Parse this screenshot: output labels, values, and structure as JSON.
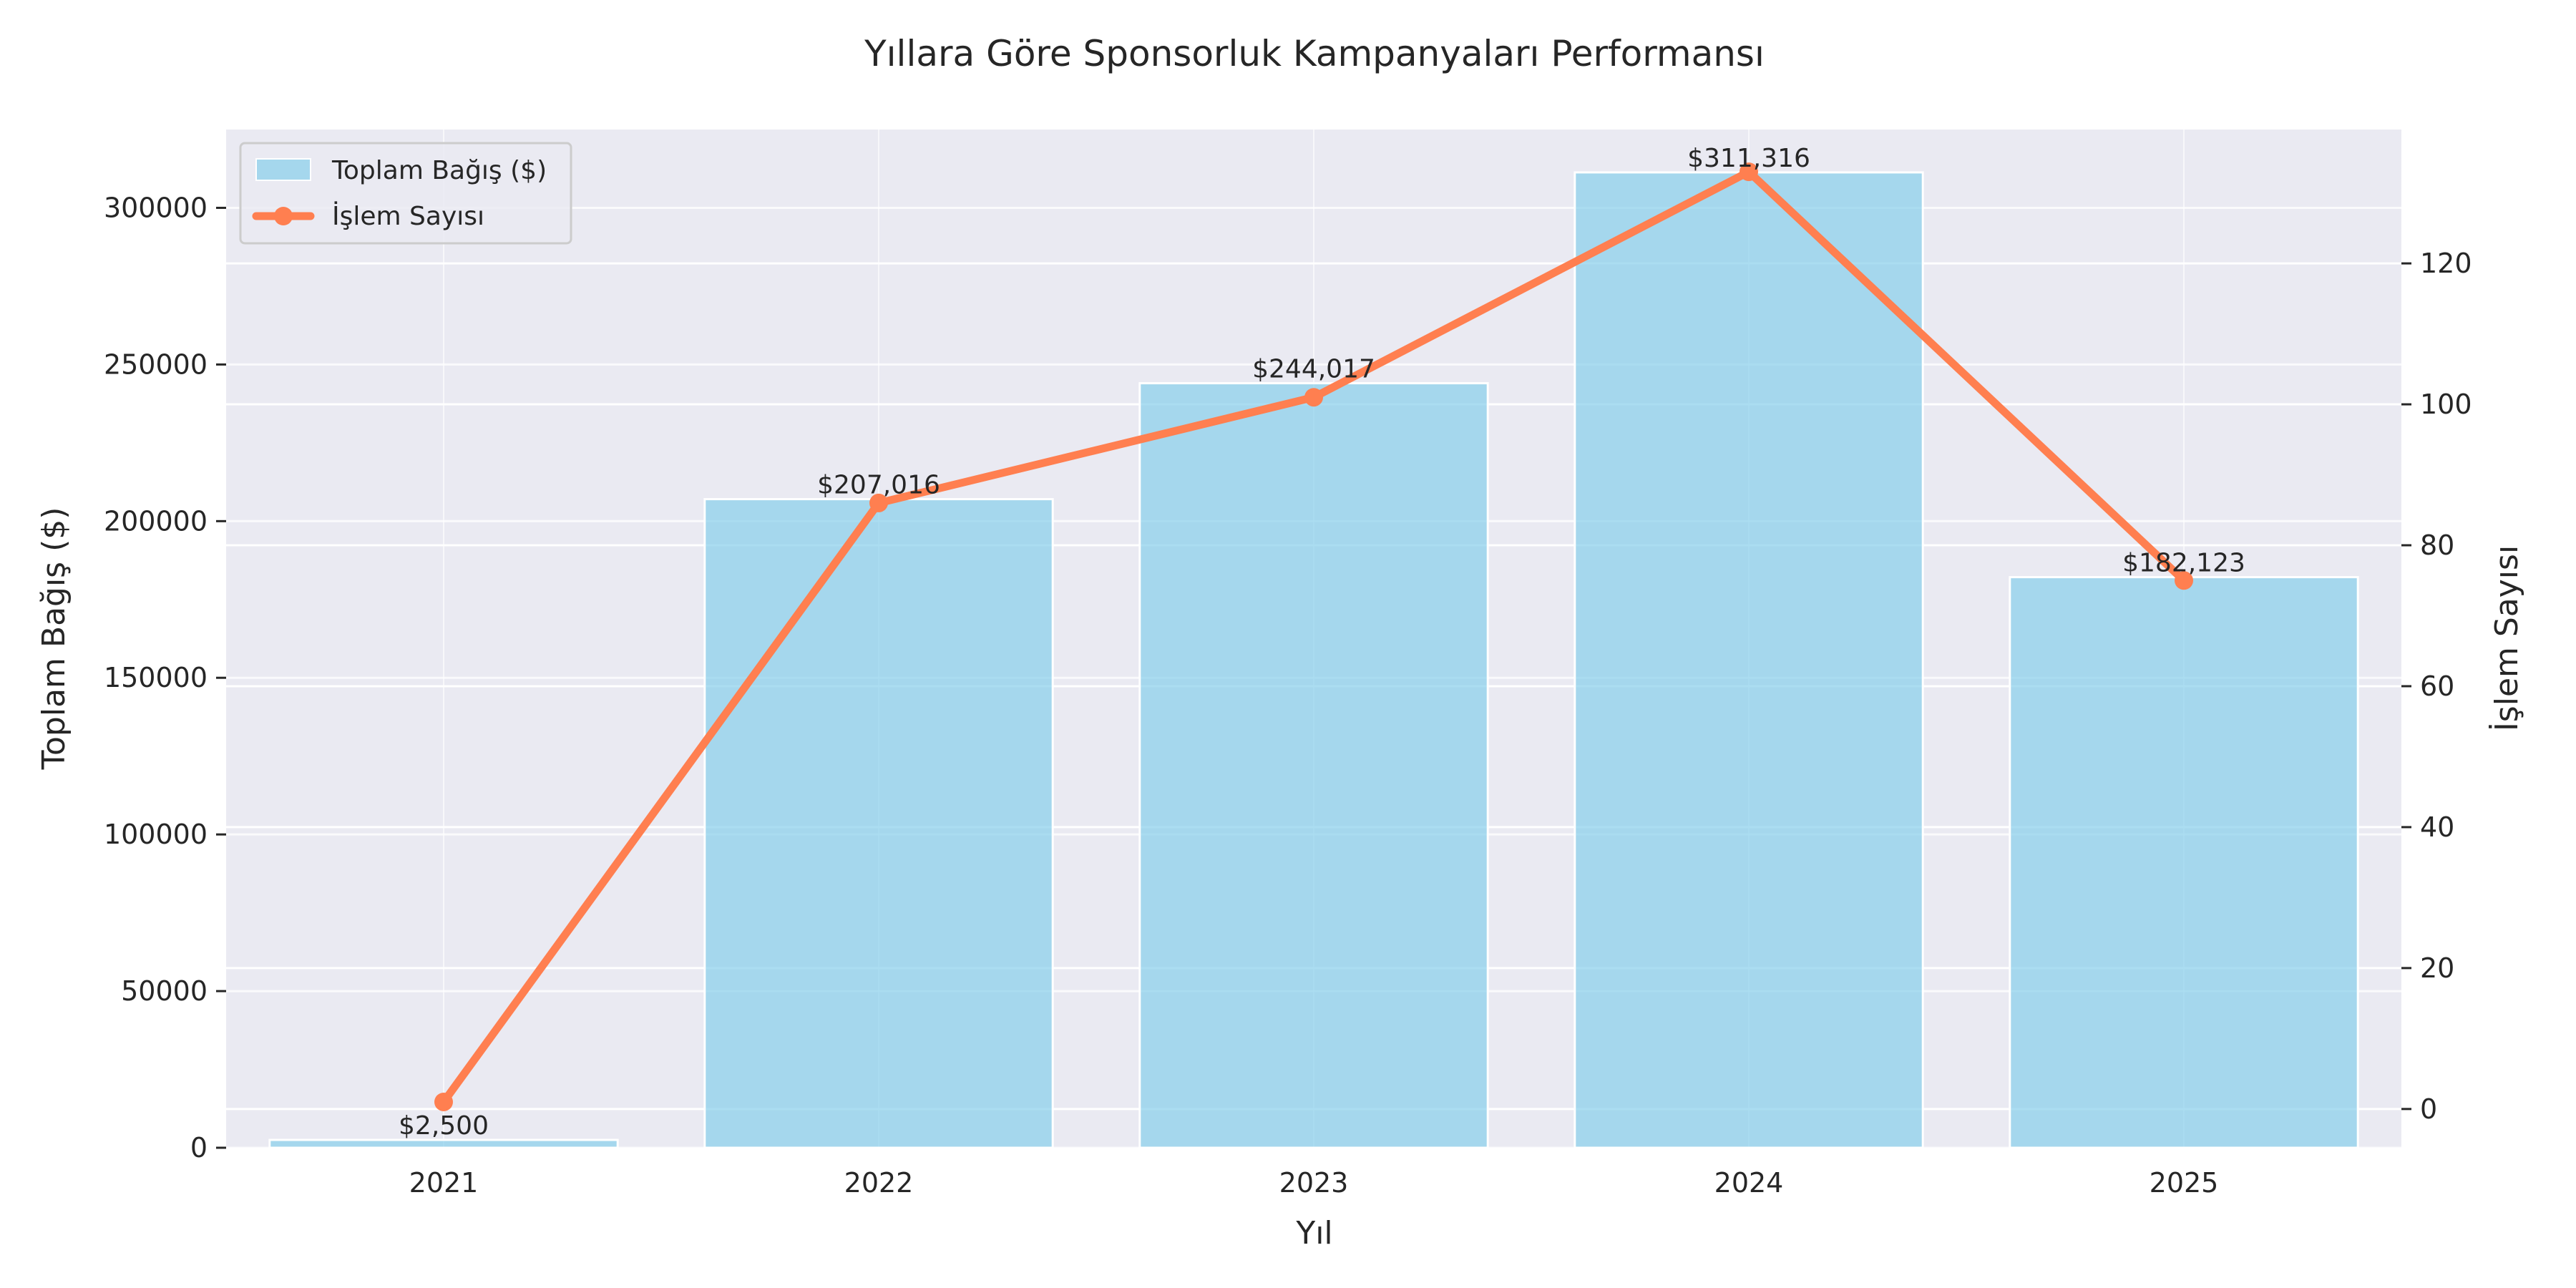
{
  "chart_data": {
    "type": "bar+line",
    "title": "Yıllara Göre Sponsorluk Kampanyaları Performansı",
    "xlabel": "Yıl",
    "ylabel_left": "Toplam Bağış ($)",
    "ylabel_right": "İşlem Sayısı",
    "categories": [
      "2021",
      "2022",
      "2023",
      "2024",
      "2025"
    ],
    "series": [
      {
        "name": "Toplam Bağış ($)",
        "type": "bar",
        "axis": "left",
        "color": "#87CEEB",
        "values": [
          2500,
          207016,
          244017,
          311316,
          182123
        ],
        "labels": [
          "$2,500",
          "$207,016",
          "$244,017",
          "$311,316",
          "$182,123"
        ]
      },
      {
        "name": "İşlem Sayısı",
        "type": "line",
        "axis": "right",
        "color": "#FF7F50",
        "values": [
          1,
          86,
          101,
          133,
          75
        ]
      }
    ],
    "ylim_left": [
      0,
      325000
    ],
    "yticks_left": [
      "0",
      "50000",
      "100000",
      "150000",
      "200000",
      "250000",
      "300000"
    ],
    "ylim_right": [
      -5.5,
      139
    ],
    "yticks_right": [
      "0",
      "20",
      "40",
      "60",
      "80",
      "100",
      "120"
    ],
    "grid": true,
    "legend_position": "upper left",
    "background_color": "#EAEAF2"
  }
}
